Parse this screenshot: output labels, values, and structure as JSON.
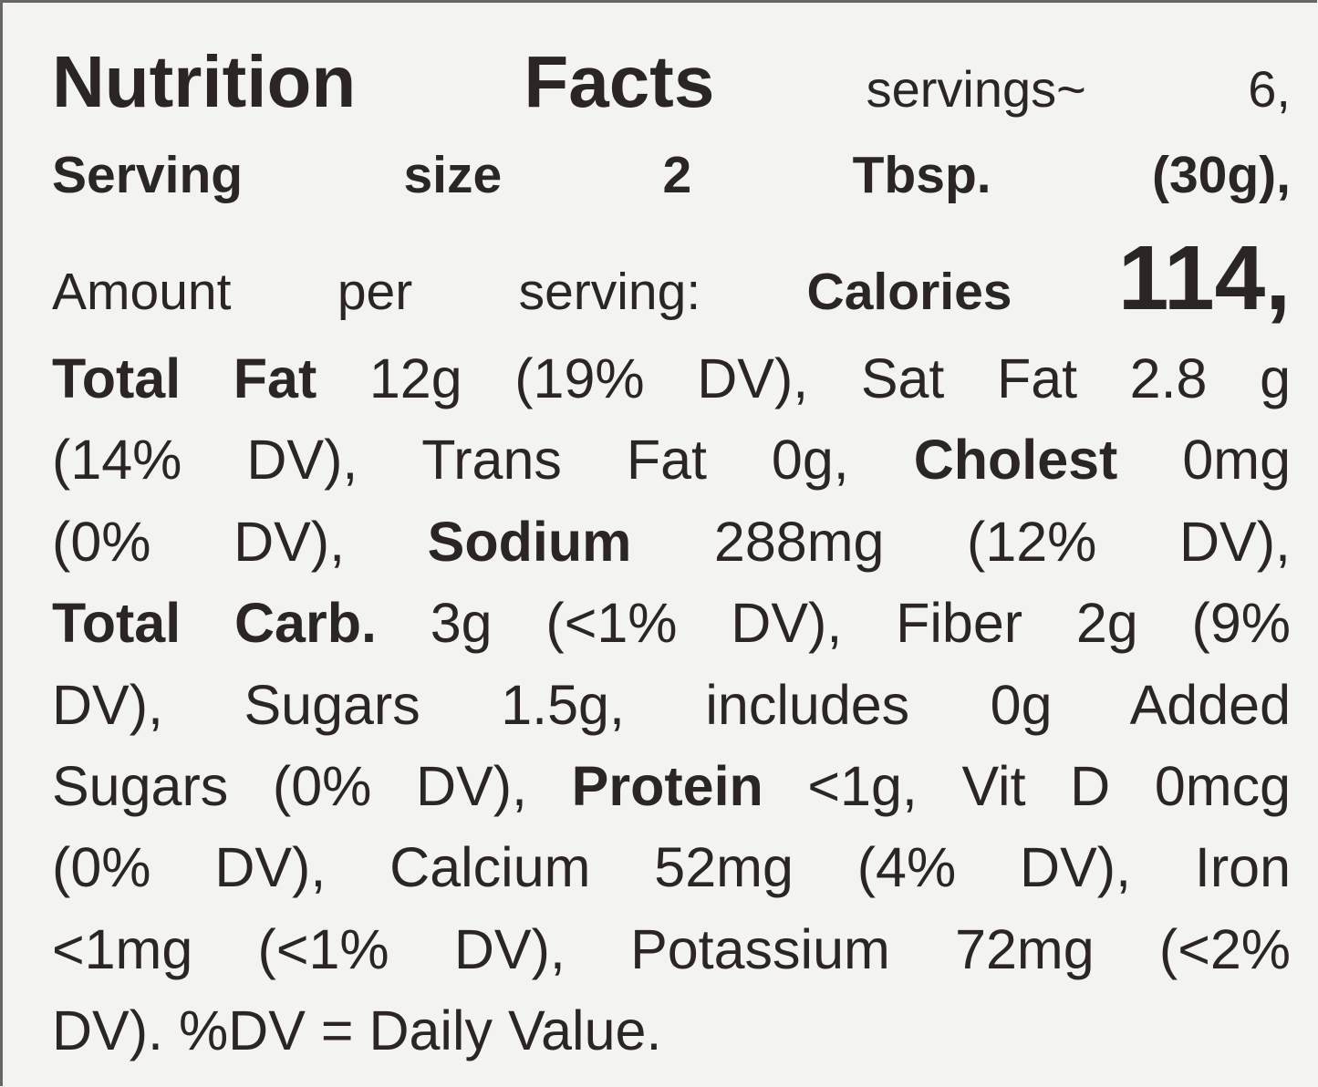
{
  "header": {
    "title": "Nutrition Facts",
    "servings": "servings~ 6,",
    "serving_size": "Serving size 2 Tbsp. (30g),",
    "amount_label": "Amount per serving:",
    "calories_label": "Calories",
    "calories_value": "114,"
  },
  "body": {
    "lines": [
      [
        {
          "text": "Total Fat",
          "style": "bold"
        },
        {
          "text": " 12g (19% DV), Sat Fat 2.8 g",
          "style": "regular"
        }
      ],
      [
        {
          "text": "(14% DV), Trans Fat 0g, ",
          "style": "regular"
        },
        {
          "text": "Cholest",
          "style": "bold"
        },
        {
          "text": " 0mg",
          "style": "regular"
        }
      ],
      [
        {
          "text": "(0% DV), ",
          "style": "regular"
        },
        {
          "text": "Sodium",
          "style": "bold"
        },
        {
          "text": " 288mg (12% DV),",
          "style": "regular"
        }
      ],
      [
        {
          "text": "Total Carb.",
          "style": "bold"
        },
        {
          "text": " 3g (<1% DV), Fiber 2g (9%",
          "style": "regular"
        }
      ],
      [
        {
          "text": "DV), Sugars 1.5g, includes 0g Added",
          "style": "regular"
        }
      ],
      [
        {
          "text": "Sugars (0% DV), ",
          "style": "regular"
        },
        {
          "text": "Protein",
          "style": "bold"
        },
        {
          "text": " <1g, Vit D 0mcg",
          "style": "regular"
        }
      ],
      [
        {
          "text": "(0% DV), Calcium 52mg (4% DV), Iron",
          "style": "regular"
        }
      ],
      [
        {
          "text": "<1mg (<1% DV), Potassium 72mg (<2%",
          "style": "regular"
        }
      ],
      [
        {
          "text": "DV). %DV = Daily Value.",
          "style": "regular"
        }
      ]
    ]
  }
}
